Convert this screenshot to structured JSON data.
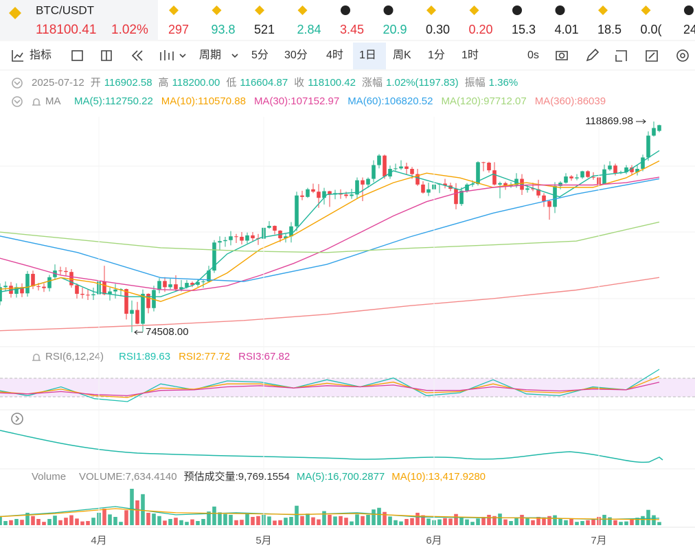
{
  "header": {
    "symbol": "BTC/USDT",
    "price": "118100.41",
    "change": "1.02%",
    "price_color": "#e8363d",
    "tickers": [
      {
        "value": "297",
        "color": "#e8363d",
        "icon": "coin"
      },
      {
        "value": "93.8",
        "color": "#1fb59a",
        "icon": "coin"
      },
      {
        "value": "521",
        "color": "#222222",
        "icon": "coin"
      },
      {
        "value": "2.84",
        "color": "#1fb59a",
        "icon": "coin"
      },
      {
        "value": "3.45",
        "color": "#e8363d",
        "icon": "ball"
      },
      {
        "value": "20.9",
        "color": "#1fb59a",
        "icon": "ball"
      },
      {
        "value": "0.30",
        "color": "#222222",
        "icon": "coin"
      },
      {
        "value": "0.20",
        "color": "#e8363d",
        "icon": "coin"
      },
      {
        "value": "15.3",
        "color": "#222222",
        "icon": "ball"
      },
      {
        "value": "4.01",
        "color": "#222222",
        "icon": "ball"
      },
      {
        "value": "18.5",
        "color": "#222222",
        "icon": "coin"
      },
      {
        "value": "0.0(",
        "color": "#222222",
        "icon": "coin"
      },
      {
        "value": "24",
        "color": "#222222",
        "icon": "ball"
      }
    ]
  },
  "toolbar": {
    "indicator": "指标",
    "period": "周期",
    "intervals": [
      "5分",
      "30分",
      "4时",
      "1日",
      "周K",
      "1分",
      "1时"
    ],
    "selected": 3,
    "timer": "0s"
  },
  "info": {
    "date": "2025-07-12",
    "items": [
      {
        "label": "开",
        "value": "116902.58"
      },
      {
        "label": "高",
        "value": "118200.00"
      },
      {
        "label": "低",
        "value": "116604.87"
      },
      {
        "label": "收",
        "value": "118100.42"
      },
      {
        "label": "涨幅",
        "value": "1.02%(1197.83)"
      },
      {
        "label": "振幅",
        "value": "1.36%"
      }
    ]
  },
  "chart_data": {
    "type": "candlestick",
    "indicator": "MA",
    "up_color": "#25b08a",
    "down_color": "#ef454a",
    "high_label": "118869.98",
    "low_label": "74508.00",
    "candles": [
      [
        82500,
        83300,
        80200,
        81000
      ],
      [
        81000,
        84800,
        80200,
        84000
      ],
      [
        84000,
        85200,
        83200,
        84300
      ],
      [
        84300,
        85100,
        81800,
        82600
      ],
      [
        82600,
        84800,
        81800,
        84000
      ],
      [
        84000,
        84800,
        81900,
        82700
      ],
      [
        82700,
        87400,
        82000,
        86800
      ],
      [
        86800,
        87500,
        83600,
        84200
      ],
      [
        84200,
        84900,
        83300,
        84100
      ],
      [
        84100,
        84800,
        83000,
        83800
      ],
      [
        83800,
        86600,
        83100,
        86100
      ],
      [
        86100,
        88800,
        85500,
        87500
      ],
      [
        87500,
        88300,
        86600,
        87400
      ],
      [
        87400,
        88200,
        86300,
        87200
      ],
      [
        87200,
        87800,
        83900,
        84400
      ],
      [
        84400,
        84800,
        81600,
        82600
      ],
      [
        82600,
        83900,
        81600,
        82400
      ],
      [
        82400,
        83600,
        81300,
        82300
      ],
      [
        82300,
        83900,
        81300,
        82500
      ],
      [
        82500,
        85600,
        82400,
        85200
      ],
      [
        85200,
        88500,
        82300,
        82500
      ],
      [
        82500,
        83900,
        81200,
        83100
      ],
      [
        83100,
        84700,
        81600,
        83500
      ],
      [
        83500,
        83800,
        82200,
        83600
      ],
      [
        83600,
        83700,
        77200,
        78400
      ],
      [
        78400,
        81200,
        74508,
        79200
      ],
      [
        79200,
        80900,
        76200,
        76300
      ],
      [
        76300,
        83500,
        74600,
        82600
      ],
      [
        82600,
        82700,
        78500,
        79600
      ],
      [
        79600,
        84300,
        78900,
        83400
      ],
      [
        83400,
        85900,
        82700,
        85300
      ],
      [
        85300,
        86100,
        83000,
        84000
      ],
      [
        84000,
        85800,
        83600,
        84600
      ],
      [
        84600,
        86500,
        83100,
        83600
      ],
      [
        83600,
        85500,
        83100,
        84000
      ],
      [
        84000,
        85500,
        83700,
        84900
      ],
      [
        84900,
        85200,
        84000,
        84500
      ],
      [
        84500,
        85600,
        84100,
        85100
      ],
      [
        85100,
        85600,
        83900,
        85200
      ],
      [
        85200,
        88500,
        85100,
        87500
      ],
      [
        87500,
        93900,
        87000,
        93400
      ],
      [
        93400,
        94700,
        91700,
        93700
      ],
      [
        93700,
        94600,
        92500,
        93900
      ],
      [
        93900,
        95800,
        92800,
        94700
      ],
      [
        94700,
        95200,
        93300,
        94600
      ],
      [
        94600,
        95600,
        93000,
        93800
      ],
      [
        93800,
        95500,
        93200,
        94900
      ],
      [
        94900,
        95600,
        93700,
        94300
      ],
      [
        94300,
        95200,
        92900,
        94200
      ],
      [
        94200,
        97400,
        94100,
        96500
      ],
      [
        96500,
        97900,
        96300,
        96900
      ],
      [
        96900,
        97000,
        95100,
        95900
      ],
      [
        95900,
        96000,
        93500,
        94300
      ],
      [
        94300,
        95200,
        93400,
        94700
      ],
      [
        94700,
        97700,
        93400,
        96800
      ],
      [
        96800,
        104100,
        95800,
        103300
      ],
      [
        103300,
        104300,
        102300,
        103000
      ],
      [
        103000,
        104900,
        102800,
        104600
      ],
      [
        104600,
        105800,
        103800,
        104100
      ],
      [
        104100,
        105700,
        100700,
        102800
      ],
      [
        102800,
        104900,
        101400,
        104200
      ],
      [
        104200,
        104300,
        100900,
        103500
      ],
      [
        103500,
        104500,
        102500,
        103800
      ],
      [
        103800,
        104600,
        102600,
        103500
      ],
      [
        103500,
        104100,
        102700,
        103200
      ],
      [
        103200,
        104700,
        102600,
        103500
      ],
      [
        103500,
        107100,
        102600,
        106500
      ],
      [
        106500,
        107100,
        102100,
        105600
      ],
      [
        105600,
        107100,
        104900,
        106800
      ],
      [
        106800,
        110700,
        106100,
        109700
      ],
      [
        109700,
        112000,
        109000,
        111700
      ],
      [
        111700,
        111900,
        106800,
        107300
      ],
      [
        107300,
        109600,
        106800,
        108900
      ],
      [
        108900,
        110000,
        108500,
        109000
      ],
      [
        109000,
        110700,
        108700,
        109400
      ],
      [
        109400,
        110200,
        107600,
        108900
      ],
      [
        108900,
        109300,
        106800,
        107800
      ],
      [
        107800,
        108900,
        105300,
        105600
      ],
      [
        105600,
        106300,
        103700,
        103900
      ],
      [
        103900,
        106000,
        103200,
        104600
      ],
      [
        104600,
        105900,
        103900,
        105600
      ],
      [
        105600,
        105900,
        103800,
        105800
      ],
      [
        105800,
        106800,
        104800,
        105400
      ],
      [
        105400,
        106000,
        104200,
        104700
      ],
      [
        104700,
        105900,
        100400,
        101500
      ],
      [
        101500,
        105000,
        101100,
        104300
      ],
      [
        104300,
        105900,
        103900,
        105600
      ],
      [
        105600,
        106500,
        105100,
        105700
      ],
      [
        105700,
        110500,
        105400,
        110300
      ],
      [
        110300,
        110400,
        108400,
        110200
      ],
      [
        110200,
        110400,
        108100,
        108600
      ],
      [
        108600,
        110300,
        105400,
        105600
      ],
      [
        105600,
        106200,
        102700,
        105900
      ],
      [
        105900,
        106200,
        104500,
        105400
      ],
      [
        105400,
        106100,
        104900,
        105500
      ],
      [
        105500,
        108000,
        104900,
        106800
      ],
      [
        106800,
        107800,
        103400,
        104500
      ],
      [
        104500,
        105500,
        103900,
        104800
      ],
      [
        104800,
        106000,
        104200,
        104600
      ],
      [
        104600,
        106600,
        102800,
        103300
      ],
      [
        103300,
        103800,
        100900,
        102100
      ],
      [
        102100,
        102300,
        98200,
        100900
      ],
      [
        100900,
        106100,
        99600,
        105300
      ],
      [
        105300,
        106300,
        104600,
        106000
      ],
      [
        106000,
        108000,
        105800,
        107300
      ],
      [
        107300,
        107600,
        106400,
        106900
      ],
      [
        106900,
        107800,
        106500,
        107100
      ],
      [
        107100,
        108500,
        106800,
        108400
      ],
      [
        108400,
        108600,
        107000,
        107200
      ],
      [
        107200,
        108200,
        106600,
        107100
      ],
      [
        107100,
        107500,
        105300,
        105700
      ],
      [
        105700,
        109800,
        105600,
        108800
      ],
      [
        108800,
        110500,
        108500,
        109600
      ],
      [
        109600,
        110000,
        107500,
        108000
      ],
      [
        108000,
        108500,
        107800,
        108200
      ],
      [
        108200,
        109700,
        107800,
        109200
      ],
      [
        109200,
        109700,
        107500,
        108200
      ],
      [
        108200,
        109700,
        107500,
        108900
      ],
      [
        108900,
        111900,
        108400,
        111300
      ],
      [
        111300,
        116800,
        110600,
        115900
      ],
      [
        115900,
        118869.98,
        115700,
        117500
      ],
      [
        116902.58,
        118200,
        116604.87,
        118100.42
      ]
    ],
    "ma_lines": [
      {
        "label": "MA(5):112750.22",
        "color": "#1fb59a",
        "values": [
          82800,
          84000,
          86000,
          83000,
          82000,
          82000,
          84500,
          91000,
          94400,
          95600,
          103500,
          104000,
          108500,
          106500,
          104500,
          107800,
          105300,
          103000,
          107400,
          108200,
          112750.22
        ]
      },
      {
        "label": "MA(10):110570.88",
        "color": "#f5a300",
        "values": [
          83500,
          84000,
          86000,
          85000,
          83000,
          81000,
          83500,
          87000,
          92000,
          95000,
          99000,
          103000,
          106000,
          108000,
          107000,
          105000,
          106000,
          105000,
          105000,
          107000,
          110570.88
        ]
      },
      {
        "label": "MA(30):107152.97",
        "color": "#e0469a",
        "values": [
          90400,
          88500,
          86500,
          85500,
          84500,
          83500,
          83300,
          84300,
          86500,
          89000,
          92000,
          95500,
          99000,
          102000,
          104000,
          105000,
          105500,
          105500,
          105500,
          106000,
          107152.97
        ]
      },
      {
        "label": "MA(60):106820.52",
        "color": "#32a2e8",
        "values": [
          95000,
          91300,
          86000,
          85200,
          88800,
          94600,
          99600,
          103600,
          106820.52
        ]
      },
      {
        "label": "MA(120):97712.07",
        "color": "#a3d67b",
        "values": [
          95700,
          94000,
          92300,
          91600,
          91300,
          92200,
          92900,
          93700,
          97712.07
        ]
      },
      {
        "label": "MA(360):86039",
        "color": "#f48a8a",
        "values": [
          74800,
          75400,
          76100,
          77000,
          78300,
          80100,
          81600,
          83400,
          86039
        ]
      }
    ],
    "months": [
      {
        "label": "4月",
        "candle": 19
      },
      {
        "label": "5月",
        "candle": 49
      },
      {
        "label": "6月",
        "candle": 80
      },
      {
        "label": "7月",
        "candle": 110
      }
    ],
    "rsi": {
      "title": "RSI(6,12,24)",
      "series": [
        {
          "label": "RSI1:89.63",
          "color": "#1fc0b0",
          "values": [
            55,
            45,
            60,
            40,
            35,
            65,
            55,
            70,
            68,
            58,
            72,
            60,
            75,
            45,
            50,
            72,
            48,
            45,
            60,
            55,
            89.63
          ]
        },
        {
          "label": "RSI2:77.72",
          "color": "#f5a300",
          "values": [
            52,
            48,
            56,
            45,
            42,
            58,
            56,
            65,
            65,
            58,
            66,
            60,
            68,
            50,
            52,
            65,
            52,
            50,
            58,
            55,
            77.72
          ]
        },
        {
          "label": "RSI3:67.82",
          "color": "#d63d9e",
          "values": [
            50,
            48,
            52,
            47,
            45,
            54,
            55,
            60,
            62,
            58,
            62,
            60,
            63,
            54,
            54,
            60,
            55,
            53,
            56,
            55,
            67.82
          ]
        }
      ]
    },
    "volume": {
      "title": "Volume",
      "stats": [
        {
          "text": "VOLUME:7,634.4140",
          "color": "#888888"
        },
        {
          "text": "预估成交量:9,769.1554",
          "color": "#333333"
        }
      ],
      "values": [
        25000,
        22000,
        10000,
        12000,
        15000,
        13000,
        30000,
        22000,
        15000,
        8000,
        15000,
        23000,
        12000,
        18000,
        24000,
        16000,
        9000,
        10000,
        18000,
        30000,
        40000,
        26000,
        20000,
        8000,
        36000,
        88000,
        60000,
        75000,
        30000,
        28000,
        22000,
        11000,
        15000,
        18000,
        12000,
        8000,
        14000,
        10000,
        15000,
        33000,
        45000,
        31000,
        27000,
        25000,
        12000,
        13000,
        30000,
        20000,
        22000,
        25000,
        21000,
        11000,
        12000,
        18000,
        20000,
        47000,
        22000,
        28000,
        19000,
        14000,
        34000,
        25000,
        21000,
        22000,
        18000,
        9000,
        26000,
        22000,
        25000,
        38000,
        42000,
        32000,
        21000,
        12000,
        9000,
        15000,
        17000,
        30000,
        24000,
        16000,
        12000,
        14000,
        17000,
        16000,
        27000,
        20000,
        14000,
        8000,
        16000,
        20000,
        25000,
        22000,
        28000,
        14000,
        10000,
        18000,
        25000,
        17000,
        12000,
        20000,
        19000,
        22000,
        24000,
        16000,
        12000,
        15000,
        8000,
        10000,
        12000,
        14000,
        20000,
        25000,
        19000,
        12000,
        8000,
        9000,
        15000,
        18000,
        22000,
        37000,
        24000,
        7634.414
      ],
      "ma_lines": [
        {
          "label": "MA(5):16,700.2877",
          "color": "#1fb59a",
          "values": [
            20000,
            30000,
            45000,
            25000,
            30000,
            25000,
            30000,
            20000,
            18000,
            18000,
            14000,
            16700.2877
          ]
        },
        {
          "label": "MA(10):13,417.9280",
          "color": "#f5a300",
          "values": [
            20000,
            28000,
            40000,
            30000,
            28000,
            26000,
            28000,
            22000,
            19000,
            17000,
            15000,
            13417.928
          ]
        }
      ]
    }
  }
}
